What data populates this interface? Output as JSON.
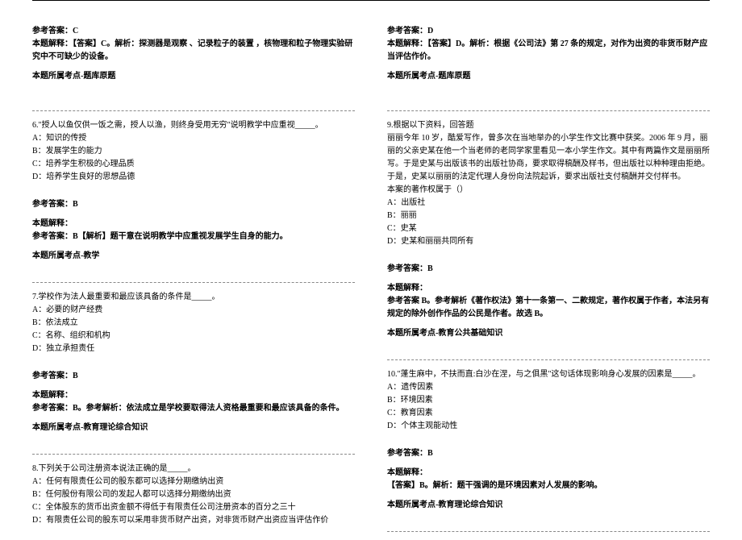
{
  "left": {
    "a1_ans": "参考答案：C",
    "a1_exp": "本题解释：【答案】C。解析：探测器是观察 、记录粒子的装置 ，核物理和粒子物理实验研究中不可缺少的设备。",
    "a1_cat": "本题所属考点-题库原题",
    "q6_stem": "6.\"授人以鱼仅供一饭之需，授人以渔，则终身受用无穷\"说明教学中应重视_____。",
    "q6_a": "A：知识的传授",
    "q6_b": "B：发展学生的能力",
    "q6_c": "C：培养学生积极的心理品质",
    "q6_d": "D：培养学生良好的思想品德",
    "q6_ans": "参考答案：B",
    "q6_exp_h": "本题解释：",
    "q6_exp": "参考答案：B【解析】题干意在说明教学中应重视发展学生自身的能力。",
    "q6_cat": "本题所属考点-教学",
    "q7_stem": "7.学校作为法人最重要和最应该具备的条件是_____。",
    "q7_a": "A：必要的财产经费",
    "q7_b": "B：依法成立",
    "q7_c": "C：名称、组织和机构",
    "q7_d": "D：独立承担责任",
    "q7_ans": "参考答案：B",
    "q7_exp_h": "本题解释：",
    "q7_exp": "参考答案：B。参考解析：依法成立是学校要取得法人资格最重要和最应该具备的条件。",
    "q7_cat": "本题所属考点-教育理论综合知识",
    "q8_stem": "8.下列关于公司注册资本说法正确的是_____。",
    "q8_a": "A：任何有限责任公司的股东都可以选择分期缴纳出资",
    "q8_b": "B：任何股份有限公司的发起人都可以选择分期缴纳出资",
    "q8_c": "C：全体股东的货币出资金额不得低于有限责任公司注册资本的百分之三十",
    "q8_d": "D：有限责任公司的股东可以采用非货币财产出资，对非货币财产出资应当评估作价"
  },
  "right": {
    "a8_ans": "参考答案：D",
    "a8_exp": "本题解释：【答案】D。解析：根据《公司法》第 27 条的规定，对作为出资的非货币财产应当评估作价。",
    "a8_cat": "本题所属考点-题库原题",
    "q9_head": "9.根据以下资料，回答题",
    "q9_p1": "丽丽今年 10 岁，酷爱写作，曾多次在当地举办的小学生作文比赛中获奖。2006 年 9 月，丽丽的父亲史某在他一个当老师的老同学家里看见一本小学生作文。其中有两篇作文是丽丽所写。于是史某与出版该书的出版社协商，要求取得稿酬及样书，但出版社以种种理由拒绝。于是，史某以丽丽的法定代理人身份向法院起诉，要求出版社支付稿酬并交付样书。",
    "q9_p2": "本案的著作权属于（）",
    "q9_a": "A：出版社",
    "q9_b": "B：丽丽",
    "q9_c": "C：史某",
    "q9_d": "D：史某和丽丽共同所有",
    "q9_ans": "参考答案：B",
    "q9_exp_h": "本题解释：",
    "q9_exp": "参考答案 B。参考解析《著作权法》第十一条第一、二款规定，著作权属于作者，本法另有规定的除外创作作品的公民是作者。故选 B。",
    "q9_cat": "本题所属考点-教育公共基础知识",
    "q10_stem": "10.\"蓬生麻中，不扶而直:白沙在涅，与之俱黑\"这句话体现影响身心发展的因素是_____。",
    "q10_a": "A：遗传因素",
    "q10_b": "B：环境因素",
    "q10_c": "C：教育因素",
    "q10_d": "D：个体主观能动性",
    "q10_ans": "参考答案：B",
    "q10_exp_h": "本题解释：",
    "q10_exp": "【答案】B。解析：题干强调的是环境因素对人发展的影响。",
    "q10_cat": "本题所属考点-教育理论综合知识"
  }
}
